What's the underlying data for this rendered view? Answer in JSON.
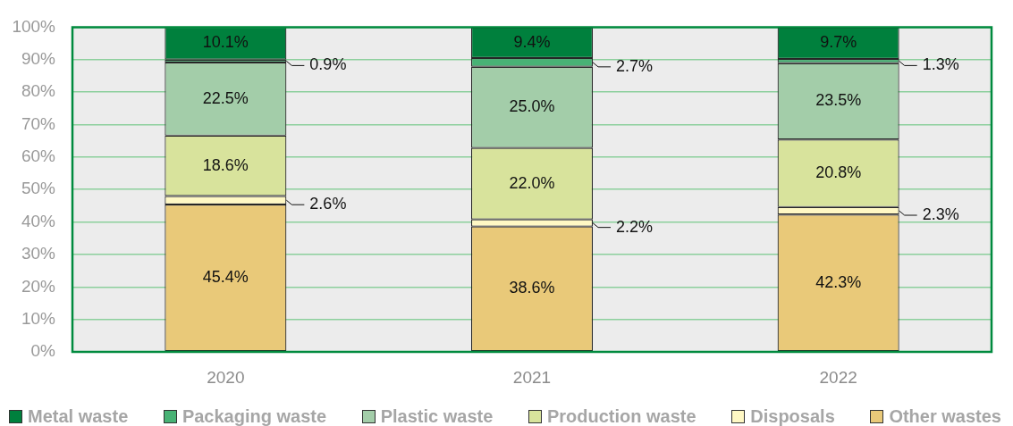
{
  "chart_data": {
    "type": "bar",
    "stacked": true,
    "categories": [
      "2020",
      "2021",
      "2022"
    ],
    "series": [
      {
        "name": "Other wastes",
        "color": "#e9c979",
        "values": [
          45.4,
          38.6,
          42.3
        ],
        "value_labels": [
          "45.4%",
          "38.6%",
          "42.3%"
        ]
      },
      {
        "name": "Disposals",
        "color": "#fff8c4",
        "values": [
          2.6,
          2.2,
          2.3
        ],
        "value_labels": [
          "2.6%",
          "2.2%",
          "2.3%"
        ]
      },
      {
        "name": "Production waste",
        "color": "#d8e39c",
        "values": [
          18.6,
          22.0,
          20.8
        ],
        "value_labels": [
          "18.6%",
          "22.0%",
          "20.8%"
        ]
      },
      {
        "name": "Plastic waste",
        "color": "#a3cda9",
        "values": [
          22.5,
          25.0,
          23.5
        ],
        "value_labels": [
          "22.5%",
          "25.0%",
          "23.5%"
        ]
      },
      {
        "name": "Packaging waste",
        "color": "#48b275",
        "values": [
          0.9,
          2.7,
          1.3
        ],
        "value_labels": [
          "0.9%",
          "2.7%",
          "1.3%"
        ]
      },
      {
        "name": "Metal waste",
        "color": "#00803d",
        "values": [
          10.1,
          9.4,
          9.7
        ],
        "value_labels": [
          "10.1%",
          "9.4%",
          "9.7%"
        ]
      }
    ],
    "ylim": [
      0,
      100
    ],
    "yticks": [
      {
        "value": 0,
        "label": "0%"
      },
      {
        "value": 10,
        "label": "10%"
      },
      {
        "value": 20,
        "label": "20%"
      },
      {
        "value": 30,
        "label": "30%"
      },
      {
        "value": 40,
        "label": "40%"
      },
      {
        "value": 50,
        "label": "50%"
      },
      {
        "value": 60,
        "label": "60%"
      },
      {
        "value": 70,
        "label": "70%"
      },
      {
        "value": 80,
        "label": "80%"
      },
      {
        "value": 90,
        "label": "90%"
      },
      {
        "value": 100,
        "label": "100%"
      }
    ],
    "grid": "y",
    "legend": "bottom"
  }
}
